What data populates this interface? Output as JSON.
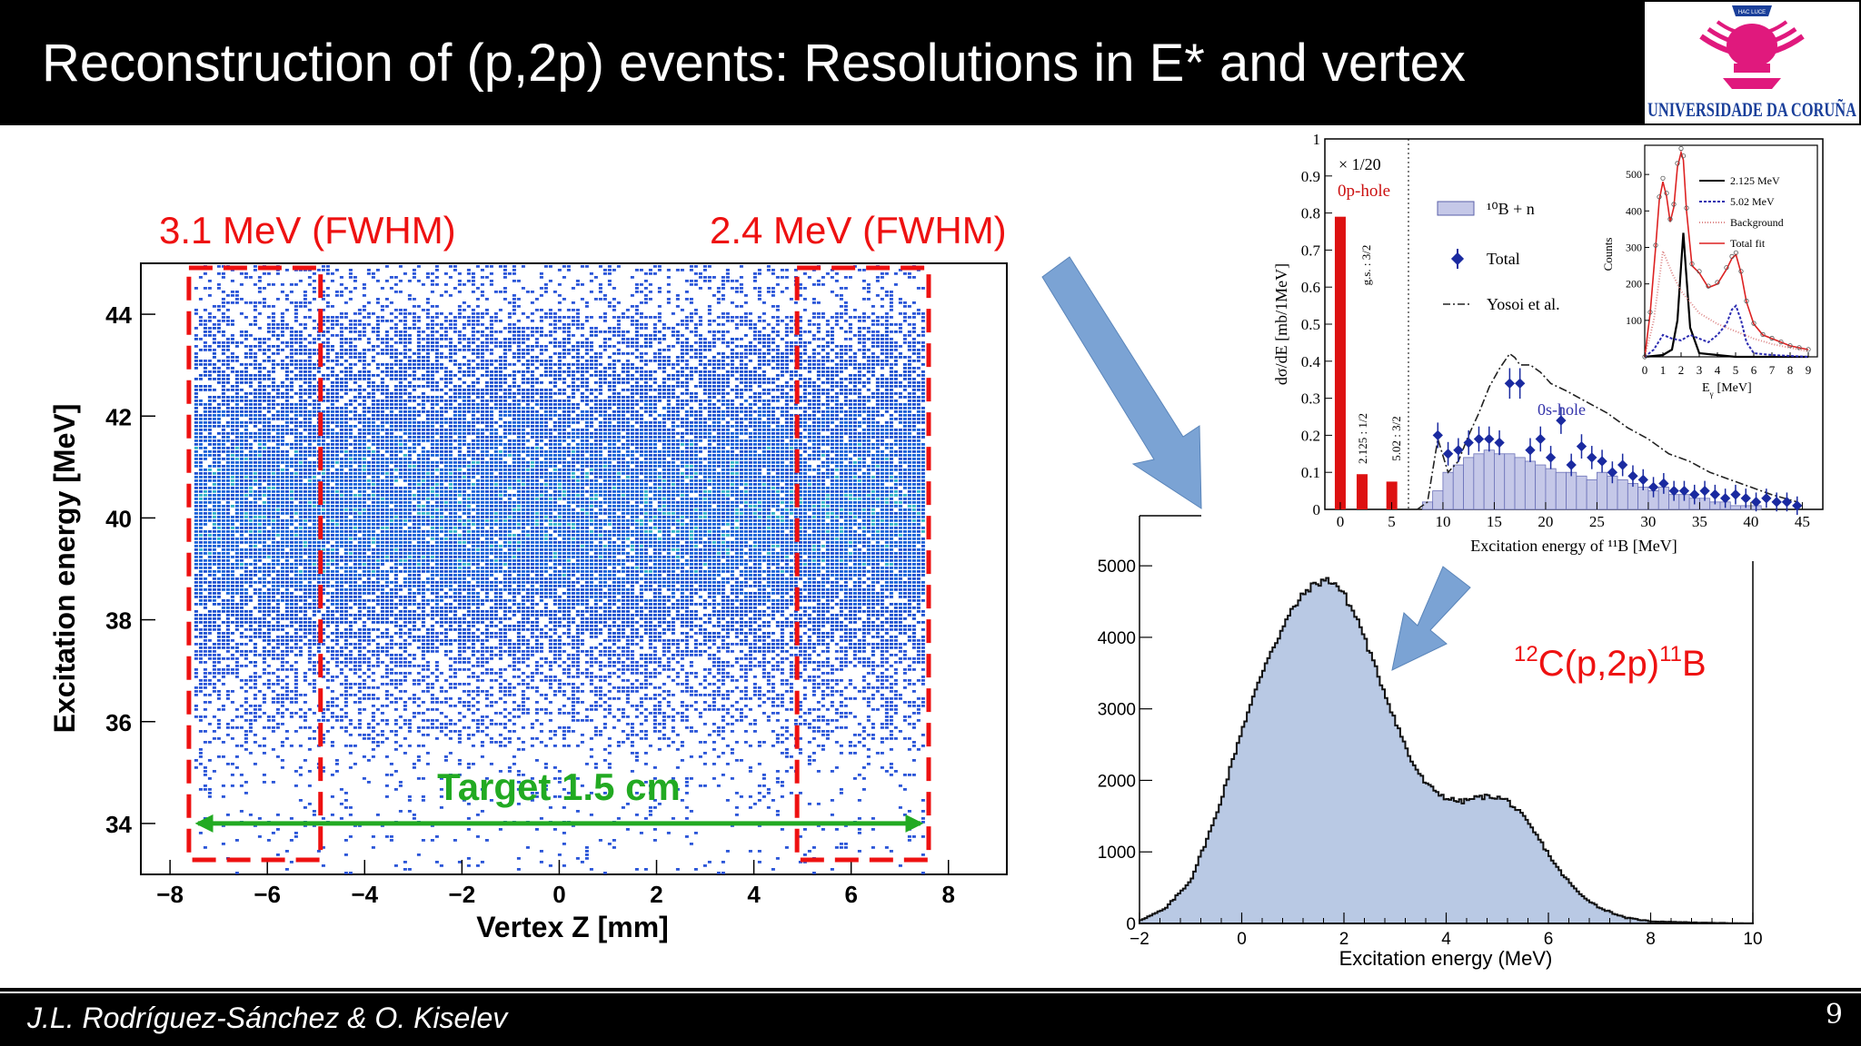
{
  "slide": {
    "title": "Reconstruction of (p,2p) events: Resolutions in E* and vertex",
    "footer": "J.L. Rodríguez-Sánchez & O. Kiselev",
    "page_number": "9",
    "logo_text": "UNIVERSIDADE DA CORUÑA",
    "logo_top_text": "HAC LUCE"
  },
  "annotations": {
    "fwhm_left": "3.1 MeV (FWHM)",
    "fwhm_right": "2.4 MeV (FWHM)",
    "target": "Target 1.5 cm",
    "reaction_pre": "12",
    "reaction_mid": "C(p,2p)",
    "reaction_iso": "11",
    "reaction_post": "B",
    "colors": {
      "red": "#ee1111",
      "green": "#22aa22",
      "arrow": "#7ba3d4"
    }
  },
  "chart_data": [
    {
      "type": "heatmap",
      "xlabel": "Vertex Z [mm]",
      "ylabel": "Excitation energy [MeV]",
      "xlim": [
        -8.6,
        9.2
      ],
      "ylim": [
        33,
        45
      ],
      "x_ticks": [
        "−8",
        "−6",
        "−4",
        "−2",
        "0",
        "2",
        "4",
        "6",
        "8"
      ],
      "y_ticks": [
        "34",
        "36",
        "38",
        "40",
        "42",
        "44"
      ],
      "x_range_populated": [
        -7.5,
        7.5
      ],
      "band_center_mev": 40,
      "band_core_range_mev": [
        38,
        43
      ],
      "fwhm_regions_mm": [
        [
          -7.5,
          -5
        ],
        [
          5,
          7.5
        ]
      ],
      "target_arrow_mm": [
        -7.5,
        7.5
      ],
      "target_arrow_y_mev": 34
    },
    {
      "type": "area",
      "xlabel": "Excitation energy (MeV)",
      "xlim": [
        -2,
        10
      ],
      "ylim": [
        0,
        5700
      ],
      "x_ticks": [
        "−2",
        "0",
        "2",
        "4",
        "6",
        "8",
        "10"
      ],
      "y_ticks": [
        "0",
        "1000",
        "2000",
        "3000",
        "4000",
        "5000"
      ],
      "x": [
        -2,
        -1.5,
        -1,
        -0.5,
        0,
        0.5,
        1,
        1.3,
        1.6,
        1.8,
        2,
        2.3,
        2.6,
        3,
        3.3,
        3.6,
        4,
        4.3,
        4.6,
        4.9,
        5.2,
        5.5,
        5.8,
        6.2,
        6.6,
        7,
        7.5,
        8,
        9,
        10
      ],
      "values": [
        40,
        200,
        600,
        1500,
        2700,
        3700,
        4400,
        4680,
        4800,
        4780,
        4600,
        4200,
        3600,
        2850,
        2300,
        1950,
        1750,
        1700,
        1760,
        1780,
        1720,
        1500,
        1200,
        750,
        420,
        220,
        80,
        30,
        10,
        0
      ]
    },
    {
      "type": "bar",
      "title": "",
      "xlabel": "Excitation energy of ¹¹B [MeV]",
      "ylabel": "dσ/dE [mb/1MeV]",
      "xlim": [
        -1.5,
        47
      ],
      "ylim": [
        0,
        1
      ],
      "x_ticks": [
        "0",
        "5",
        "10",
        "15",
        "20",
        "25",
        "30",
        "35",
        "40",
        "45"
      ],
      "y_ticks": [
        "0",
        "0.1",
        "0.2",
        "0.3",
        "0.4",
        "0.5",
        "0.6",
        "0.7",
        "0.8",
        "0.9",
        "1"
      ],
      "scale_note": "× 1/20",
      "labels": {
        "p_hole": "0p-hole",
        "s_hole": "0s-hole",
        "gs": "g.s. : 3/2",
        "l2125": "2.125 : 1/2",
        "l502": "5.02 : 3/2"
      },
      "legend": [
        "¹⁰B + n",
        "Total",
        "Yosoi et al."
      ],
      "bars": [
        {
          "x": 0,
          "value": 0.79
        },
        {
          "x": 2.125,
          "value": 0.095
        },
        {
          "x": 5.02,
          "value": 0.075
        }
      ],
      "histogram_10Bn": {
        "x": [
          8,
          9,
          10,
          11,
          12,
          13,
          14,
          15,
          16,
          17,
          18,
          19,
          20,
          21,
          22,
          23,
          24,
          25,
          26,
          27,
          28,
          29,
          30,
          31,
          32,
          33,
          34,
          35,
          36,
          37,
          38,
          39,
          40
        ],
        "values": [
          0.02,
          0.05,
          0.1,
          0.12,
          0.14,
          0.15,
          0.16,
          0.15,
          0.15,
          0.14,
          0.13,
          0.12,
          0.11,
          0.1,
          0.1,
          0.09,
          0.08,
          0.1,
          0.09,
          0.08,
          0.07,
          0.06,
          0.05,
          0.06,
          0.04,
          0.04,
          0.03,
          0.03,
          0.02,
          0.02,
          0.01,
          0.01,
          0.01
        ]
      },
      "total_points": {
        "x": [
          9.5,
          10.5,
          11.5,
          12.5,
          13.5,
          14.5,
          15.5,
          16.5,
          17.5,
          18.5,
          19.5,
          20.5,
          21.5,
          22.5,
          23.5,
          24.5,
          25.5,
          26.5,
          27.5,
          28.5,
          29.5,
          30.5,
          31.5,
          32.5,
          33.5,
          34.5,
          35.5,
          36.5,
          37.5,
          38.5,
          39.5,
          40.5,
          41.5,
          42.5,
          43.5,
          44.5
        ],
        "values": [
          0.2,
          0.15,
          0.16,
          0.18,
          0.19,
          0.19,
          0.18,
          0.34,
          0.34,
          0.16,
          0.19,
          0.14,
          0.24,
          0.12,
          0.17,
          0.14,
          0.13,
          0.1,
          0.12,
          0.09,
          0.08,
          0.06,
          0.07,
          0.05,
          0.05,
          0.04,
          0.05,
          0.04,
          0.03,
          0.04,
          0.03,
          0.02,
          0.03,
          0.02,
          0.02,
          0.01
        ]
      },
      "yosoi_curve": {
        "x": [
          7.5,
          8.5,
          9.5,
          10.5,
          11.5,
          12.5,
          13.5,
          14.5,
          15.5,
          16.5,
          17,
          17.5,
          18.5,
          19.5,
          20.5,
          22,
          24,
          26,
          28,
          30,
          32,
          34,
          36,
          38,
          40,
          42,
          44.5
        ],
        "values": [
          0,
          0.02,
          0.19,
          0.1,
          0.13,
          0.2,
          0.26,
          0.33,
          0.38,
          0.42,
          0.41,
          0.39,
          0.39,
          0.37,
          0.34,
          0.32,
          0.29,
          0.26,
          0.22,
          0.19,
          0.15,
          0.13,
          0.1,
          0.08,
          0.06,
          0.04,
          0.02
        ]
      }
    },
    {
      "type": "line",
      "xlabel": "E",
      "xlabel_sub": "γ",
      "xlabel_unit": "[MeV]",
      "ylabel": "Counts",
      "xlim": [
        0,
        9.5
      ],
      "ylim": [
        0,
        580
      ],
      "x_ticks": [
        "0",
        "1",
        "2",
        "3",
        "4",
        "5",
        "6",
        "7",
        "8",
        "9"
      ],
      "y_ticks": [
        "100",
        "200",
        "300",
        "400",
        "500"
      ],
      "series": [
        {
          "name": "2.125 MeV",
          "x": [
            0,
            1,
            1.5,
            1.8,
            2.0,
            2.125,
            2.25,
            2.5,
            3,
            4,
            5,
            9
          ],
          "values": [
            0,
            5,
            20,
            100,
            250,
            340,
            250,
            80,
            10,
            5,
            0,
            0
          ]
        },
        {
          "name": "5.02 MeV",
          "x": [
            0,
            0.5,
            1,
            1.5,
            2,
            2.5,
            3,
            3.5,
            4,
            4.5,
            4.8,
            5.02,
            5.3,
            5.6,
            6,
            7,
            9
          ],
          "values": [
            0,
            20,
            60,
            50,
            45,
            60,
            50,
            40,
            60,
            90,
            130,
            140,
            100,
            40,
            10,
            5,
            0
          ]
        },
        {
          "name": "Background",
          "x": [
            0,
            0.5,
            1,
            1.5,
            2,
            2.5,
            3,
            4,
            5,
            6,
            7,
            8,
            9
          ],
          "values": [
            0,
            100,
            290,
            230,
            180,
            150,
            120,
            90,
            70,
            50,
            35,
            25,
            15
          ]
        },
        {
          "name": "Total fit",
          "x": [
            0,
            0.3,
            0.6,
            0.8,
            1,
            1.2,
            1.4,
            1.6,
            1.8,
            2.0,
            2.125,
            2.3,
            2.6,
            3,
            3.5,
            4,
            4.5,
            4.8,
            5.02,
            5.3,
            5.6,
            6,
            6.5,
            7,
            7.5,
            8,
            8.5,
            9
          ],
          "values": [
            0,
            120,
            300,
            430,
            480,
            440,
            370,
            410,
            520,
            560,
            540,
            400,
            250,
            230,
            190,
            200,
            240,
            270,
            280,
            230,
            150,
            90,
            60,
            50,
            40,
            30,
            25,
            20
          ]
        }
      ]
    }
  ]
}
